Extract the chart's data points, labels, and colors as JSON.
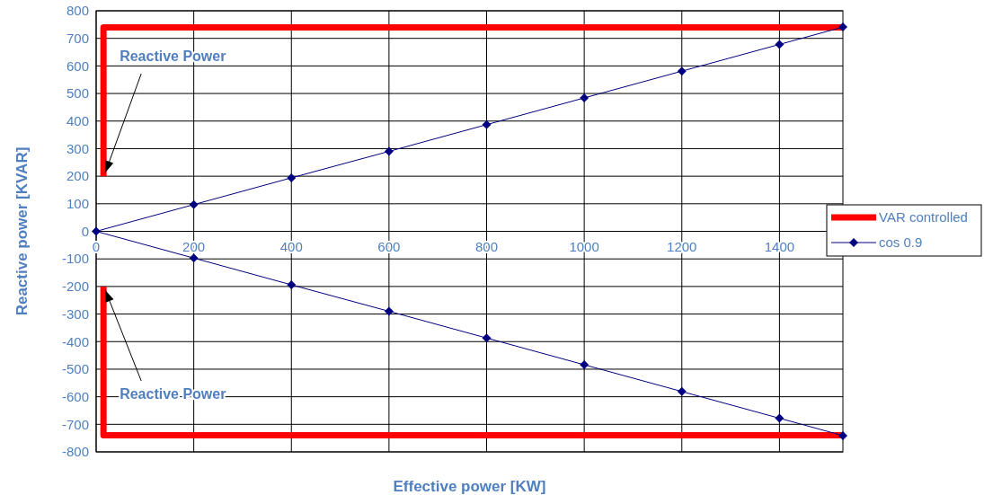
{
  "chart_data": {
    "type": "line",
    "xlabel": "Effective power [KW]",
    "ylabel": "Reactive power [KVAR]",
    "xlim": [
      0,
      1530
    ],
    "xticks": [
      0,
      200,
      400,
      600,
      800,
      1000,
      1200,
      1400
    ],
    "ylim": [
      -800,
      800
    ],
    "yticks": [
      -800,
      -700,
      -600,
      -500,
      -400,
      -300,
      -200,
      -100,
      0,
      100,
      200,
      300,
      400,
      500,
      600,
      700,
      800
    ],
    "grid": true,
    "legend": "right",
    "series": [
      {
        "name": "VAR controlled",
        "color": "#ff0000",
        "marker": "none",
        "x": [
          15,
          15,
          1530,
          null,
          1530,
          15,
          15
        ],
        "values": [
          200,
          740,
          740,
          null,
          -740,
          -740,
          -200
        ]
      },
      {
        "name": "cos 0.9",
        "color": "#000080",
        "marker": "diamond",
        "x": [
          1530,
          1400,
          1200,
          1000,
          800,
          600,
          400,
          200,
          0,
          200,
          400,
          600,
          800,
          1000,
          1200,
          1400,
          1530
        ],
        "values": [
          741,
          678,
          581,
          484,
          387,
          290,
          194,
          97,
          0,
          -97,
          -194,
          -290,
          -387,
          -484,
          -581,
          -678,
          -741
        ]
      }
    ],
    "annotations": [
      {
        "text": "Reactive Power",
        "x": 15,
        "y": 200
      },
      {
        "text": "Reactive Power",
        "x": 15,
        "y": -200
      }
    ]
  }
}
